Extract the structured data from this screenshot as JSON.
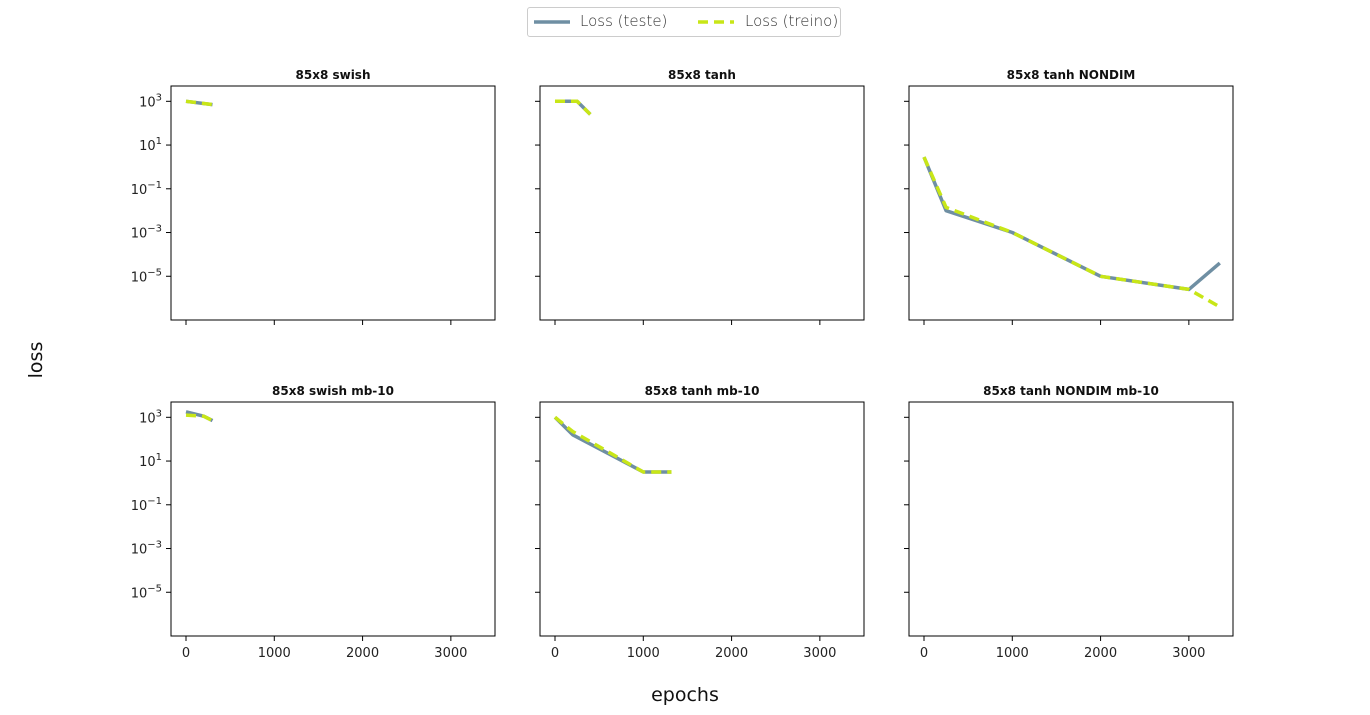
{
  "figure": {
    "xlabel": "epochs",
    "ylabel": "loss"
  },
  "legend": {
    "items": [
      {
        "label": "Loss (teste)",
        "color": "#6f8fa3",
        "style": "solid"
      },
      {
        "label": "Loss (treino)",
        "color": "#c8e617",
        "style": "dashed"
      }
    ],
    "placement": "top-center"
  },
  "chart_data": [
    {
      "type": "line",
      "title": "85x8 swish",
      "yscale": "log",
      "xlim": [
        -170,
        3500
      ],
      "ylim_exp": [
        -7,
        3.7
      ],
      "xticks": [
        0,
        1000,
        2000,
        3000
      ],
      "yticks": [
        "10^3",
        "10^1",
        "10^-1",
        "10^-3",
        "10^-5"
      ],
      "series": [
        {
          "name": "Loss (teste)",
          "x": [
            0,
            300
          ],
          "y_exp": [
            3.0,
            2.85
          ]
        },
        {
          "name": "Loss (treino)",
          "x": [
            0,
            300
          ],
          "y_exp": [
            3.0,
            2.85
          ]
        }
      ]
    },
    {
      "type": "line",
      "title": "85x8 tanh",
      "yscale": "log",
      "xlim": [
        -170,
        3500
      ],
      "ylim_exp": [
        -7,
        3.7
      ],
      "xticks": [
        0,
        1000,
        2000,
        3000
      ],
      "yticks": [
        "10^3",
        "10^1",
        "10^-1",
        "10^-3",
        "10^-5"
      ],
      "series": [
        {
          "name": "Loss (teste)",
          "x": [
            0,
            250,
            400
          ],
          "y_exp": [
            3.0,
            3.0,
            2.4
          ]
        },
        {
          "name": "Loss (treino)",
          "x": [
            0,
            250,
            400
          ],
          "y_exp": [
            3.0,
            3.0,
            2.4
          ]
        }
      ]
    },
    {
      "type": "line",
      "title": "85x8 tanh NONDIM",
      "yscale": "log",
      "xlim": [
        -170,
        3500
      ],
      "ylim_exp": [
        -7,
        3.7
      ],
      "xticks": [
        0,
        1000,
        2000,
        3000
      ],
      "yticks": [
        "10^3",
        "10^1",
        "10^-1",
        "10^-3",
        "10^-5"
      ],
      "series": [
        {
          "name": "Loss (teste)",
          "x": [
            0,
            250,
            1000,
            2000,
            3000,
            3350
          ],
          "y_exp": [
            0.45,
            -2.0,
            -3.0,
            -5.0,
            -5.6,
            -4.4
          ]
        },
        {
          "name": "Loss (treino)",
          "x": [
            0,
            250,
            1000,
            2000,
            3000,
            3350
          ],
          "y_exp": [
            0.45,
            -1.85,
            -3.0,
            -5.0,
            -5.6,
            -6.4
          ]
        }
      ]
    },
    {
      "type": "line",
      "title": "85x8 swish mb-10",
      "yscale": "log",
      "xlim": [
        -170,
        3500
      ],
      "ylim_exp": [
        -7,
        3.7
      ],
      "xticks": [
        0,
        1000,
        2000,
        3000
      ],
      "yticks": [
        "10^3",
        "10^1",
        "10^-1",
        "10^-3",
        "10^-5"
      ],
      "series": [
        {
          "name": "Loss (teste)",
          "x": [
            0,
            200,
            300
          ],
          "y_exp": [
            3.25,
            3.05,
            2.85
          ]
        },
        {
          "name": "Loss (treino)",
          "x": [
            0,
            200,
            300
          ],
          "y_exp": [
            3.1,
            3.05,
            2.85
          ]
        }
      ]
    },
    {
      "type": "line",
      "title": "85x8 tanh mb-10",
      "yscale": "log",
      "xlim": [
        -170,
        3500
      ],
      "ylim_exp": [
        -7,
        3.7
      ],
      "xticks": [
        0,
        1000,
        2000,
        3000
      ],
      "yticks": [
        "10^3",
        "10^1",
        "10^-1",
        "10^-3",
        "10^-5"
      ],
      "series": [
        {
          "name": "Loss (teste)",
          "x": [
            0,
            200,
            1000,
            1320
          ],
          "y_exp": [
            3.0,
            2.2,
            0.5,
            0.5
          ]
        },
        {
          "name": "Loss (treino)",
          "x": [
            0,
            200,
            1000,
            1320
          ],
          "y_exp": [
            3.0,
            2.35,
            0.5,
            0.5
          ]
        }
      ]
    },
    {
      "type": "line",
      "title": "85x8 tanh NONDIM mb-10",
      "yscale": "log",
      "xlim": [
        -170,
        3500
      ],
      "ylim_exp": [
        -7,
        3.7
      ],
      "xticks": [
        0,
        1000,
        2000,
        3000
      ],
      "yticks": [
        "10^3",
        "10^1",
        "10^-1",
        "10^-3",
        "10^-5"
      ],
      "series": []
    }
  ]
}
